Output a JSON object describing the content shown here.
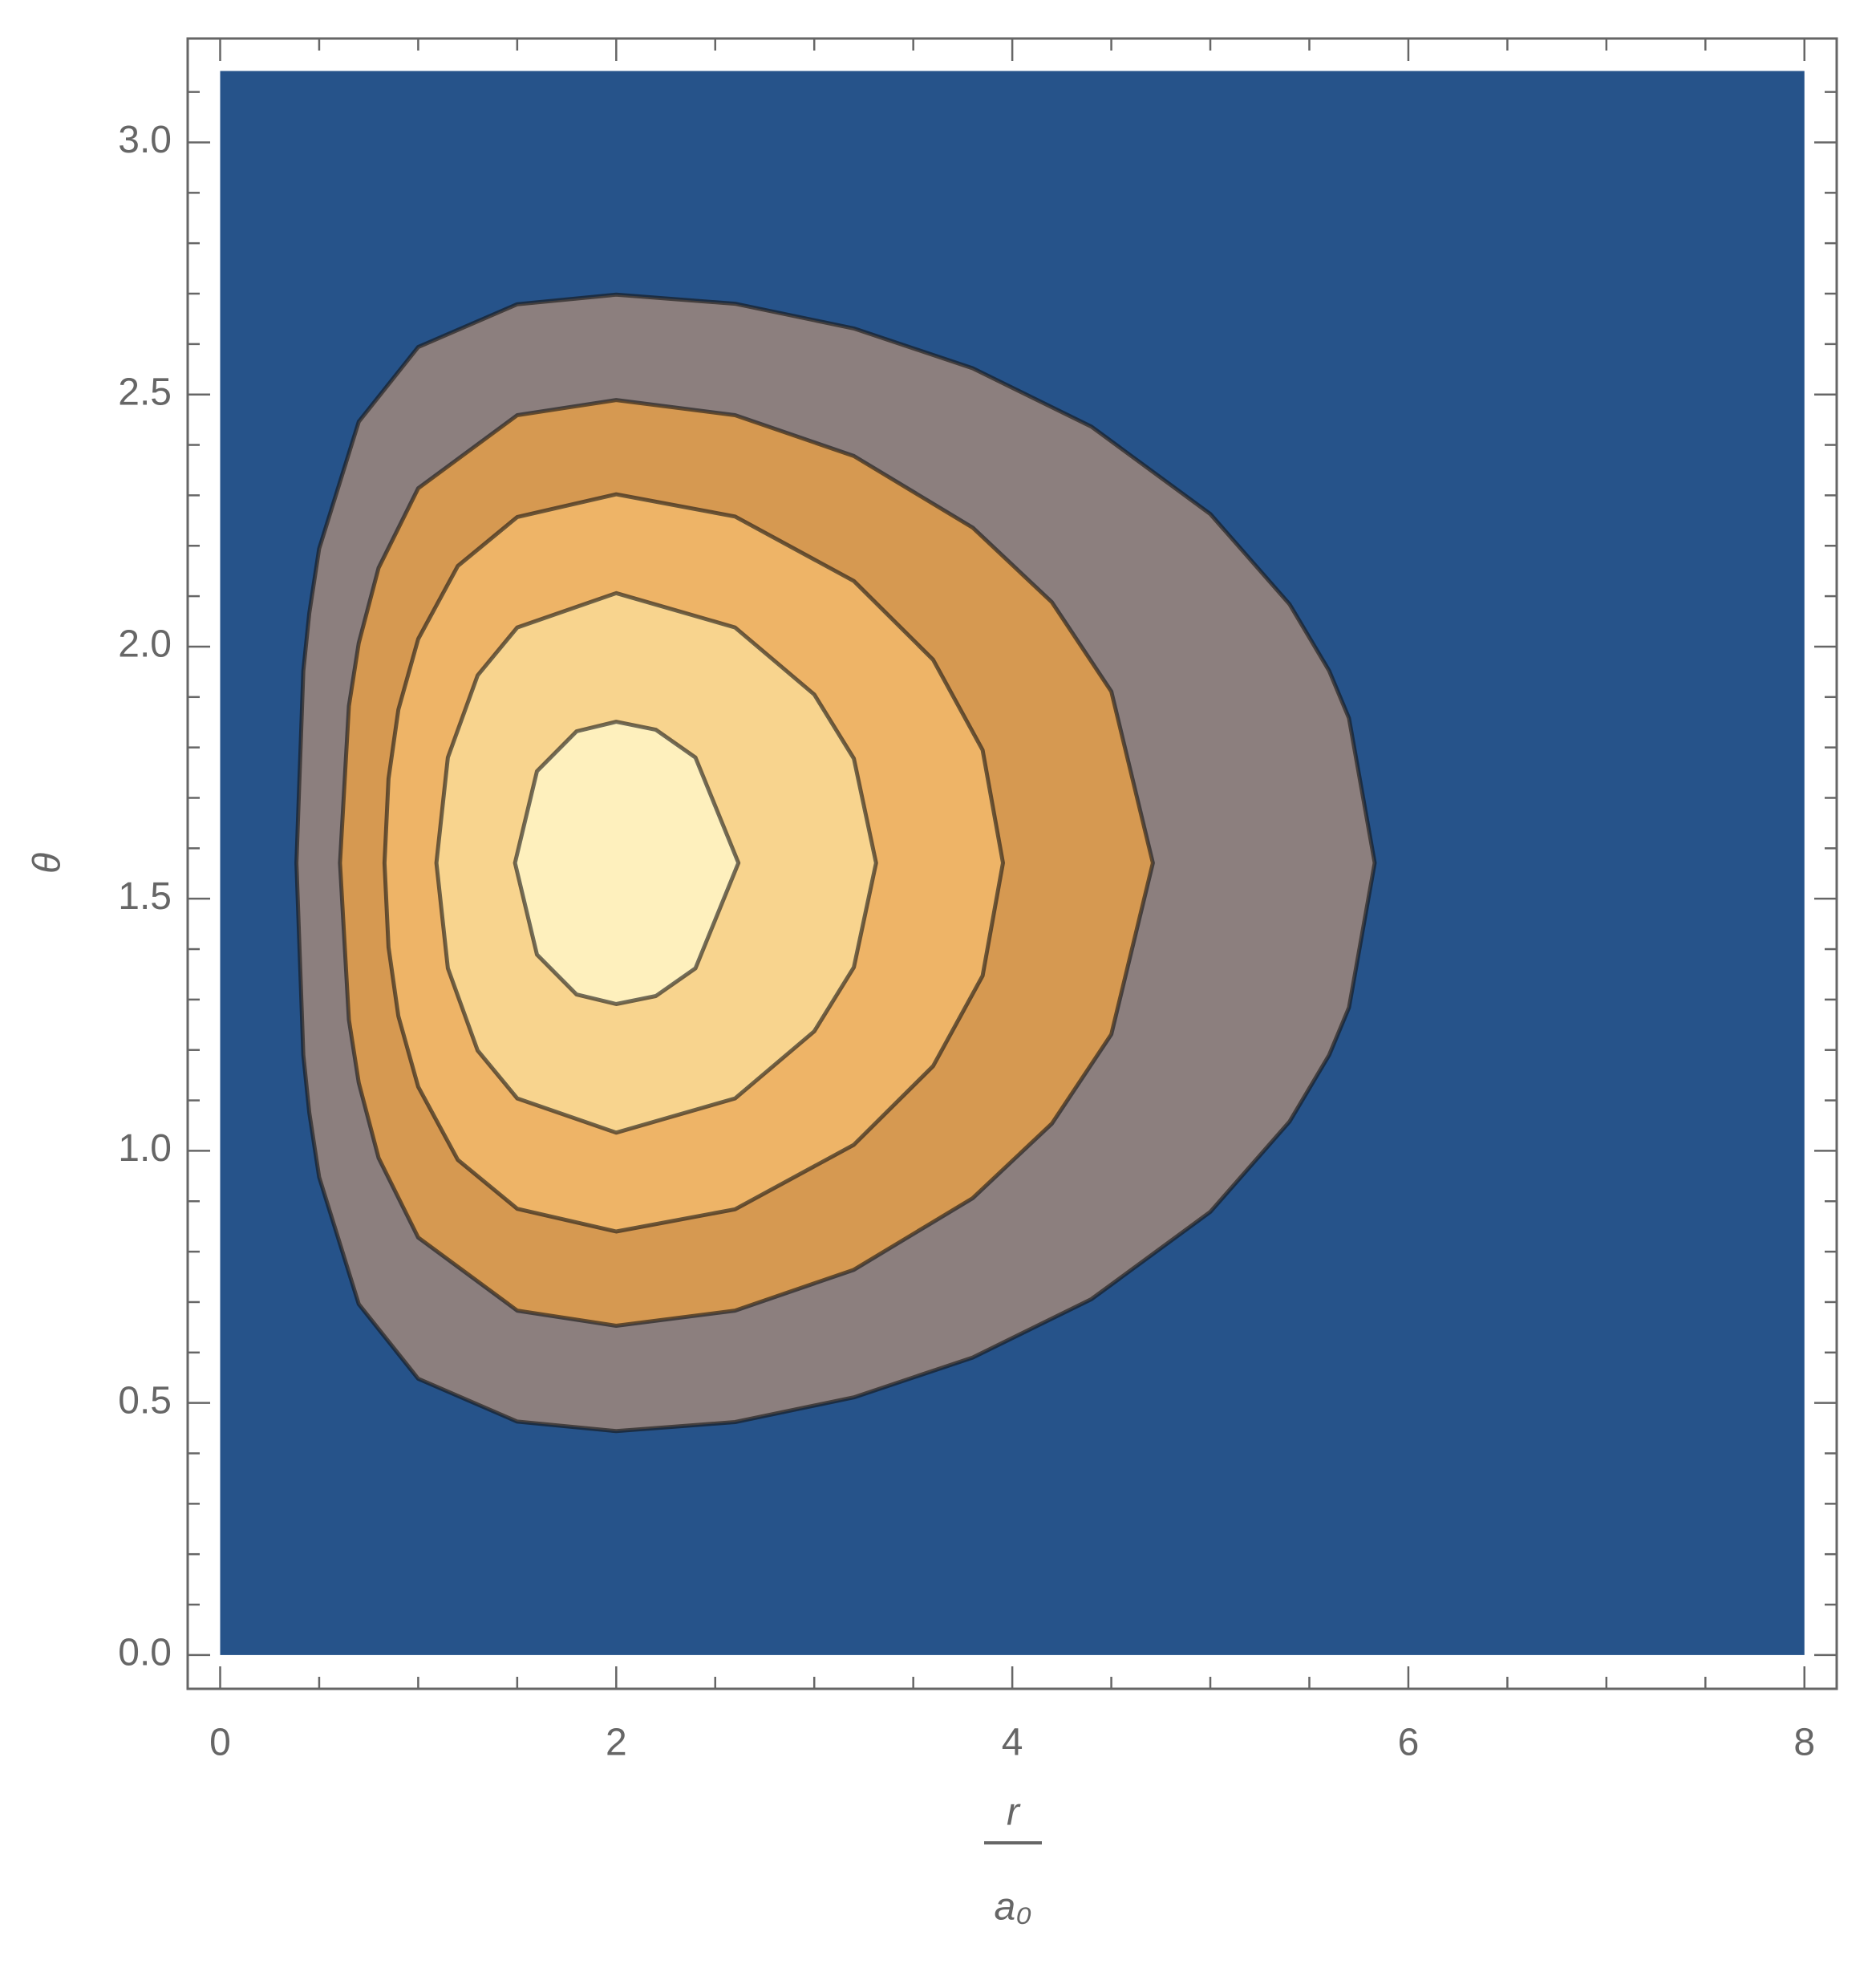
{
  "chart_data": {
    "type": "contour",
    "xlabel": {
      "numerator": "r",
      "denominator": "a₀"
    },
    "ylabel": "θ",
    "xlim": [
      -0.164,
      8.163
    ],
    "ylim": [
      -0.067,
      3.206
    ],
    "plot_range": {
      "x": [
        0,
        8
      ],
      "y": [
        0,
        3.1416
      ]
    },
    "background_color": "#26538a",
    "xticks": [
      0,
      2,
      4,
      6,
      8
    ],
    "yticks": [
      {
        "value": 0,
        "label": "0.0"
      },
      {
        "value": 0.5,
        "label": "0.5"
      },
      {
        "value": 1,
        "label": "1.0"
      },
      {
        "value": 1.5,
        "label": "1.5"
      },
      {
        "value": 2,
        "label": "2.0"
      },
      {
        "value": 2.5,
        "label": "2.5"
      },
      {
        "value": 3,
        "label": "3.0"
      }
    ],
    "xminor_ticks": [
      0.5,
      1,
      1.5,
      2.5,
      3,
      3.5,
      4.5,
      5,
      5.5,
      6.5,
      7,
      7.5
    ],
    "yminor_ticks": [
      0.1,
      0.2,
      0.3,
      0.4,
      0.6,
      0.7,
      0.8,
      0.9,
      1.1,
      1.2,
      1.3,
      1.4,
      1.6,
      1.7,
      1.8,
      1.9,
      2.1,
      2.2,
      2.3,
      2.4,
      2.6,
      2.7,
      2.8,
      2.9,
      3.1
    ],
    "contours": [
      {
        "color": "#8c7f7e",
        "x": [
          0.385,
          0.42,
          0.45,
          0.5,
          0.7,
          1.0,
          1.5,
          2.0,
          2.6,
          3.2,
          3.8,
          4.4,
          5.0,
          5.4,
          5.6,
          5.7,
          5.83,
          5.7,
          5.6,
          5.4,
          5.0,
          4.4,
          3.8,
          3.2,
          2.6,
          2.0,
          1.5,
          1.0,
          0.7,
          0.5,
          0.45,
          0.42
        ],
        "y": [
          1.571,
          1.19,
          1.076,
          0.948,
          0.696,
          0.548,
          0.463,
          0.444,
          0.462,
          0.511,
          0.59,
          0.706,
          0.879,
          1.058,
          1.19,
          1.284,
          1.571,
          1.858,
          1.952,
          2.084,
          2.263,
          2.436,
          2.552,
          2.631,
          2.68,
          2.698,
          2.679,
          2.594,
          2.446,
          2.194,
          2.066,
          1.952
        ]
      },
      {
        "color": "#d69951",
        "x": [
          0.605,
          0.65,
          0.7,
          0.8,
          1.0,
          1.5,
          2.0,
          2.6,
          3.2,
          3.8,
          4.2,
          4.5,
          4.71,
          4.5,
          4.2,
          3.8,
          3.2,
          2.6,
          2.0,
          1.5,
          1.0,
          0.8,
          0.7,
          0.65
        ],
        "y": [
          1.571,
          1.26,
          1.135,
          0.986,
          0.828,
          0.683,
          0.653,
          0.683,
          0.764,
          0.906,
          1.054,
          1.231,
          1.571,
          1.911,
          2.088,
          2.236,
          2.378,
          2.459,
          2.489,
          2.459,
          2.314,
          2.156,
          2.007,
          1.882
        ]
      },
      {
        "color": "#eeb467",
        "x": [
          0.83,
          0.85,
          0.9,
          1.0,
          1.2,
          1.5,
          2.0,
          2.6,
          3.2,
          3.6,
          3.85,
          3.953,
          3.85,
          3.6,
          3.2,
          2.6,
          2.0,
          1.5,
          1.2,
          1.0,
          0.9,
          0.85
        ],
        "y": [
          1.571,
          1.404,
          1.267,
          1.127,
          0.982,
          0.885,
          0.84,
          0.884,
          1.012,
          1.168,
          1.347,
          1.571,
          1.795,
          1.974,
          2.13,
          2.258,
          2.302,
          2.257,
          2.16,
          2.015,
          1.875,
          1.738
        ]
      },
      {
        "color": "#f8d48e",
        "x": [
          1.092,
          1.15,
          1.3,
          1.5,
          2.0,
          2.6,
          3.0,
          3.2,
          3.312,
          3.2,
          3.0,
          2.6,
          2.0,
          1.5,
          1.3,
          1.15
        ],
        "y": [
          1.571,
          1.362,
          1.199,
          1.104,
          1.036,
          1.104,
          1.237,
          1.364,
          1.571,
          1.778,
          1.905,
          2.038,
          2.106,
          2.038,
          1.943,
          1.78
        ]
      },
      {
        "color": "#fef0bd",
        "x": [
          1.489,
          1.6,
          1.8,
          2.0,
          2.2,
          2.4,
          2.617,
          2.4,
          2.2,
          2.0,
          1.8,
          1.6
        ],
        "y": [
          1.571,
          1.389,
          1.31,
          1.291,
          1.307,
          1.362,
          1.571,
          1.78,
          1.835,
          1.851,
          1.832,
          1.753
        ]
      }
    ]
  }
}
